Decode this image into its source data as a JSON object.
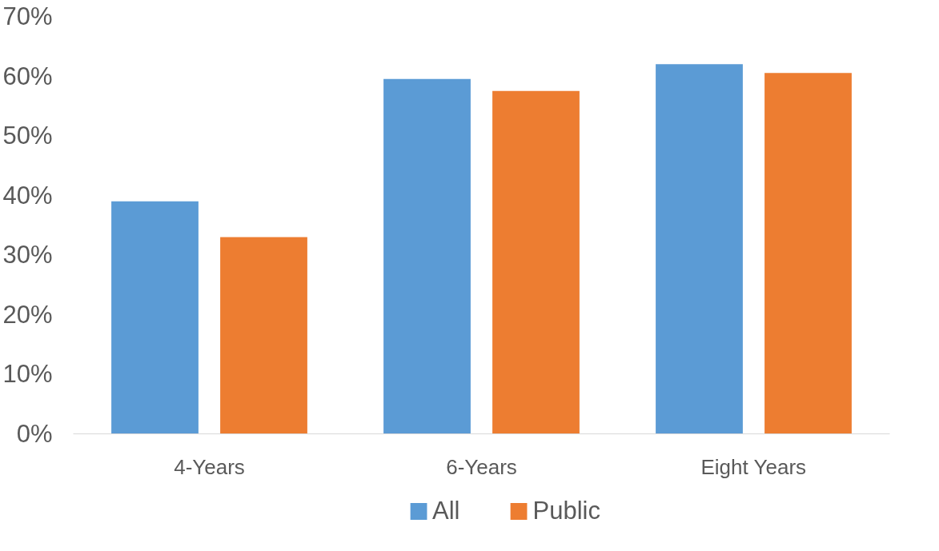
{
  "chart_data": {
    "type": "bar",
    "categories": [
      "4-Years",
      "6-Years",
      "Eight Years"
    ],
    "series": [
      {
        "name": "All",
        "color": "#5b9bd5",
        "values": [
          39,
          59.5,
          62
        ]
      },
      {
        "name": "Public",
        "color": "#ed7d31",
        "values": [
          33,
          57.5,
          60.5
        ]
      }
    ],
    "ylim": [
      0,
      70
    ],
    "yticks": [
      {
        "value": 0,
        "label": "0%"
      },
      {
        "value": 10,
        "label": "10%"
      },
      {
        "value": 20,
        "label": "20%"
      },
      {
        "value": 30,
        "label": "30%"
      },
      {
        "value": 40,
        "label": "40%"
      },
      {
        "value": 50,
        "label": "50%"
      },
      {
        "value": 60,
        "label": "60%"
      },
      {
        "value": 70,
        "label": "70%"
      }
    ],
    "grid": false,
    "legend": "bottom"
  }
}
